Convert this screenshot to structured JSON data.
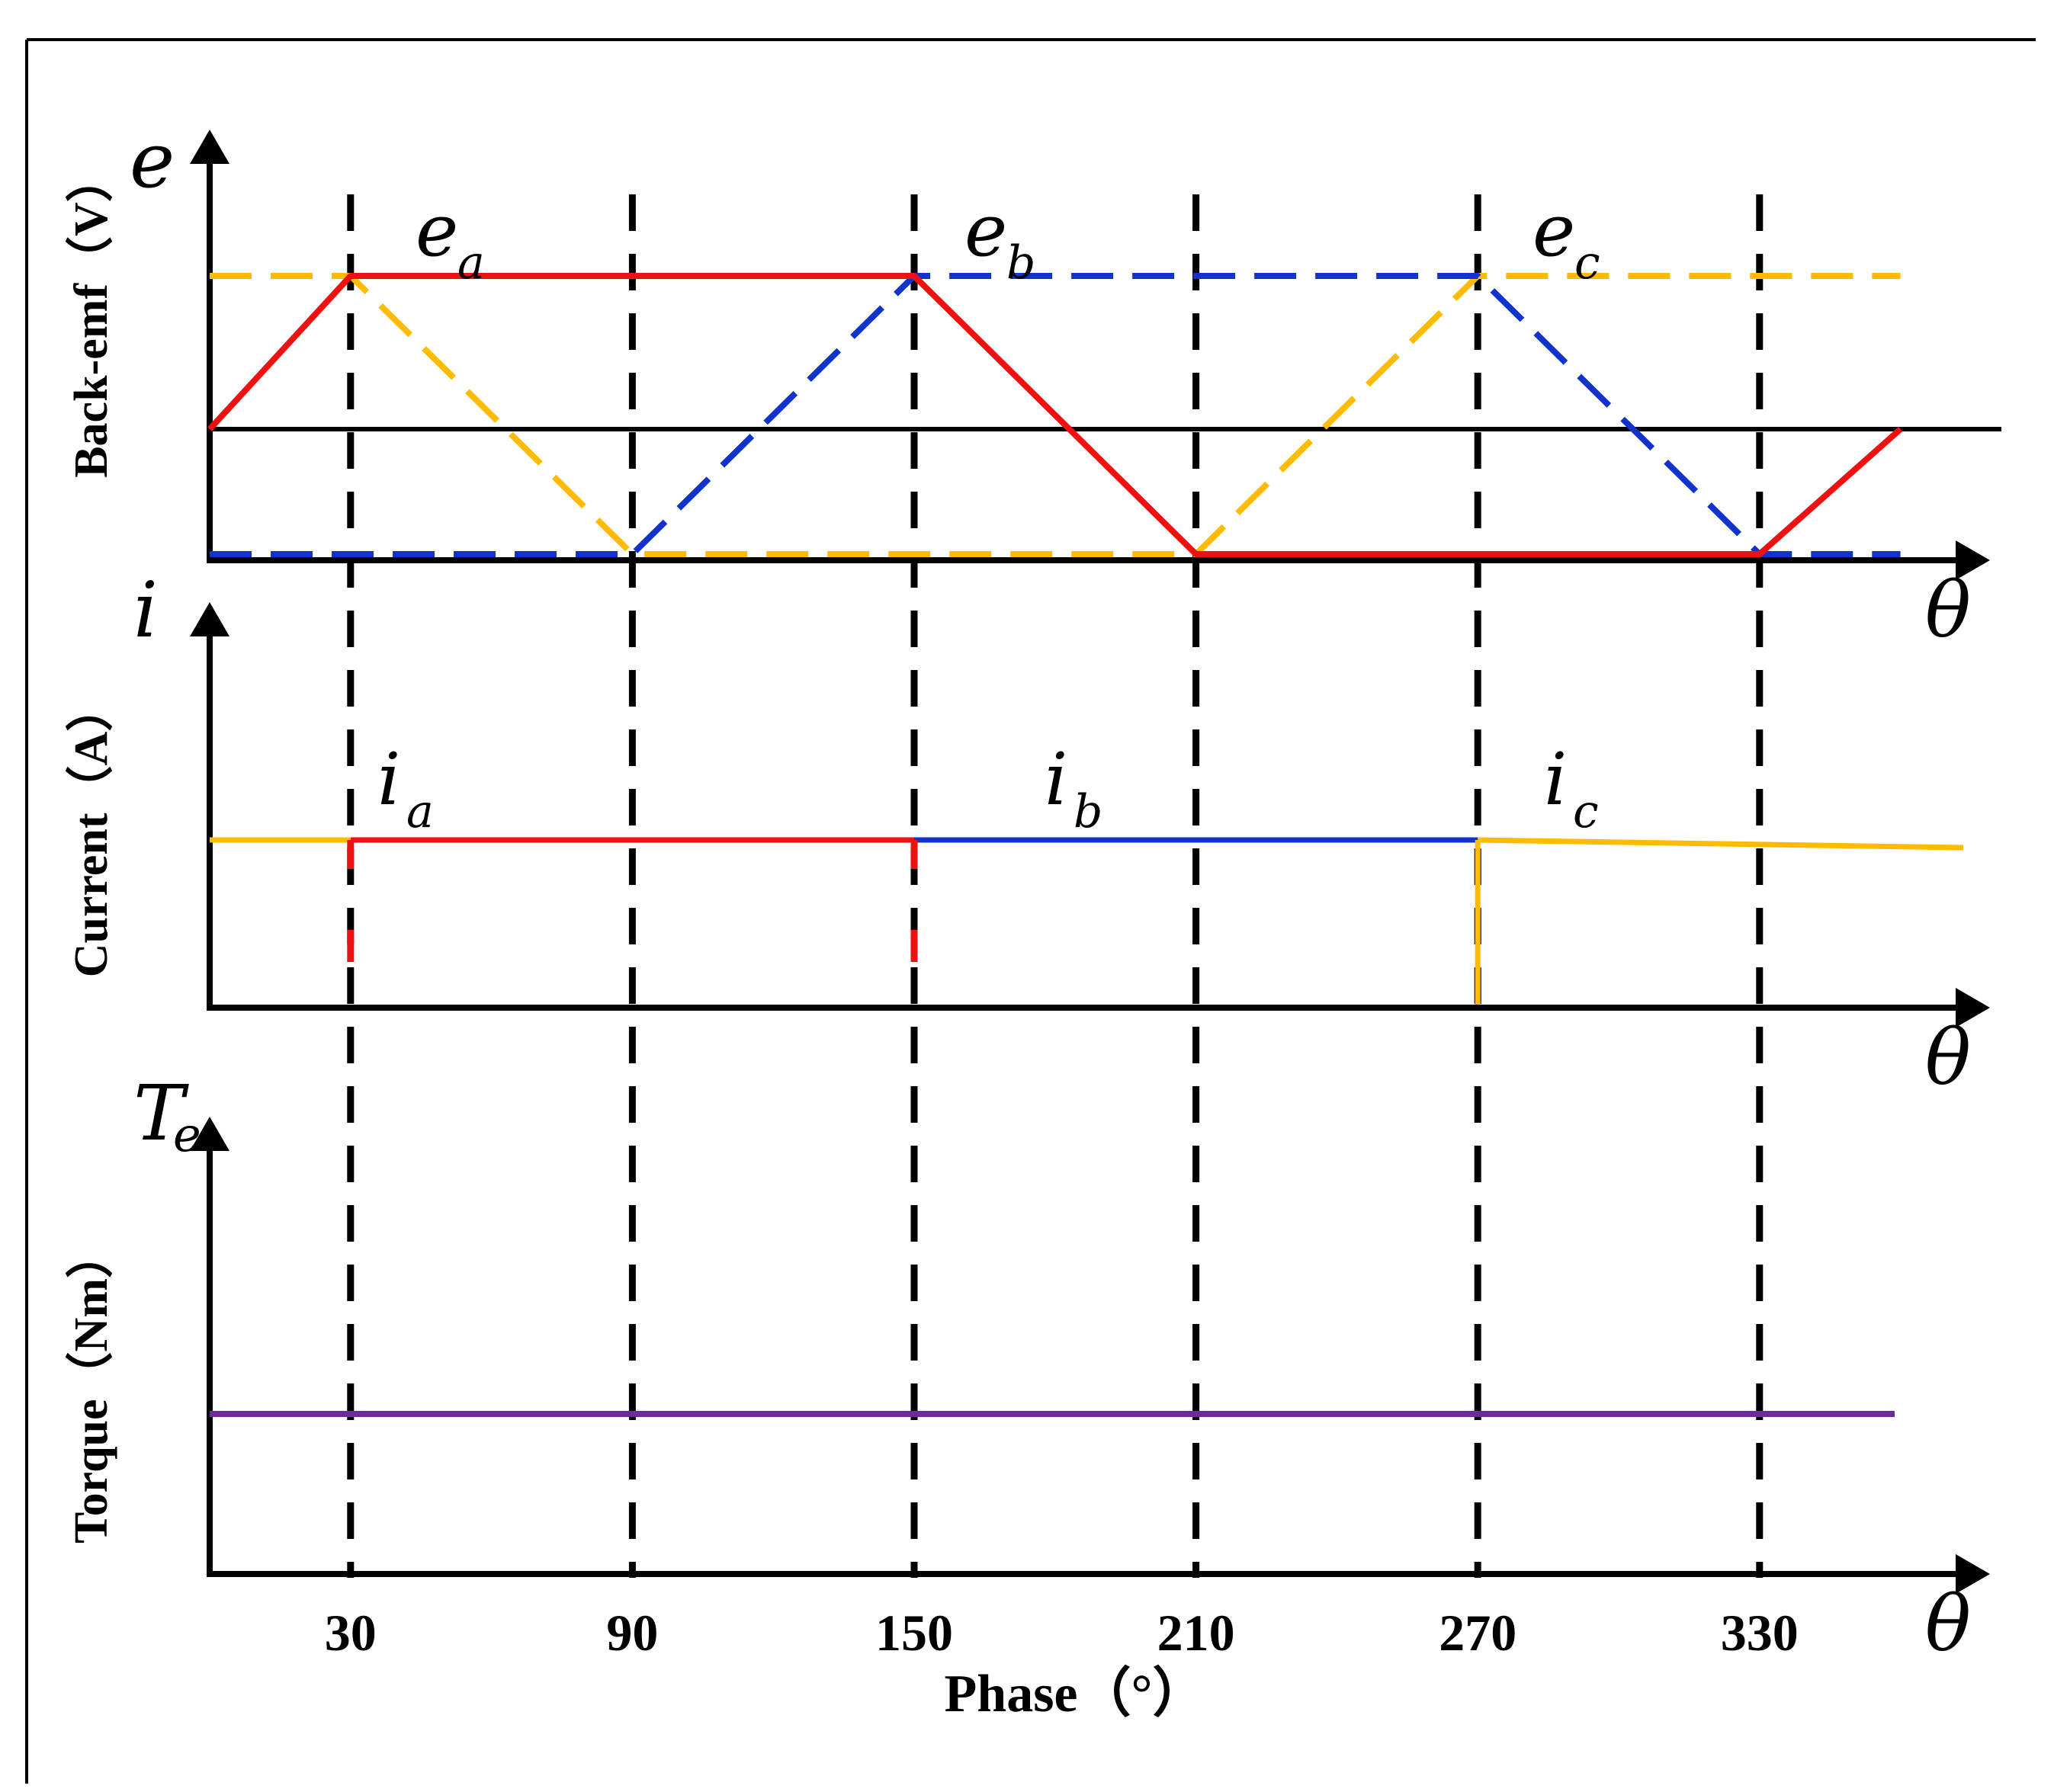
{
  "chart_data": [
    {
      "type": "line",
      "ylabel": "Back-emf（V）",
      "y_symbol": "e",
      "x_symbol": "θ",
      "xlim": [
        0,
        360
      ],
      "series": [
        {
          "name": "e",
          "sub": "a",
          "color": "#ee1111",
          "style": "solid",
          "x": [
            0,
            30,
            150,
            210,
            330,
            360
          ],
          "y": [
            0,
            1,
            1,
            -1,
            -1,
            0
          ]
        },
        {
          "name": "e",
          "sub": "b",
          "color": "#1133cc",
          "style": "dashed",
          "x": [
            0,
            90,
            150,
            270,
            330,
            360
          ],
          "y": [
            -1,
            -1,
            1,
            1,
            -1,
            -1
          ]
        },
        {
          "name": "e",
          "sub": "c",
          "color": "#ffbb00",
          "style": "dashed",
          "x": [
            0,
            30,
            90,
            210,
            270,
            360
          ],
          "y": [
            1,
            1,
            -1,
            -1,
            1,
            1
          ]
        }
      ]
    },
    {
      "type": "line",
      "ylabel": "Current（A）",
      "y_symbol": "i",
      "x_symbol": "θ",
      "xlim": [
        0,
        360
      ],
      "series": [
        {
          "name": "i",
          "sub": "a",
          "color": "#ee1111",
          "x": [
            30,
            150
          ],
          "y": [
            1,
            1
          ]
        },
        {
          "name": "i",
          "sub": "b",
          "color": "#1133cc",
          "x": [
            150,
            270
          ],
          "y": [
            1,
            1
          ]
        },
        {
          "name": "i",
          "sub": "c",
          "color": "#ffbb00",
          "x": [
            0,
            30,
            270,
            360
          ],
          "y": [
            1,
            1,
            1,
            1
          ]
        }
      ]
    },
    {
      "type": "line",
      "ylabel": "Torque（Nm）",
      "y_symbol": "T",
      "y_symbol_sub": "e",
      "x_symbol": "θ",
      "xlim": [
        0,
        360
      ],
      "xlabel": "Phase（°）",
      "xticks": [
        30,
        90,
        150,
        210,
        270,
        330
      ],
      "series": [
        {
          "name": "Torque",
          "color": "#6a2c9a",
          "x": [
            0,
            360
          ],
          "y": [
            1,
            1
          ]
        }
      ]
    }
  ],
  "colors": {
    "ea": "#ee1111",
    "eb": "#1133cc",
    "ec": "#ffbb00",
    "torque": "#6a2c9a"
  }
}
